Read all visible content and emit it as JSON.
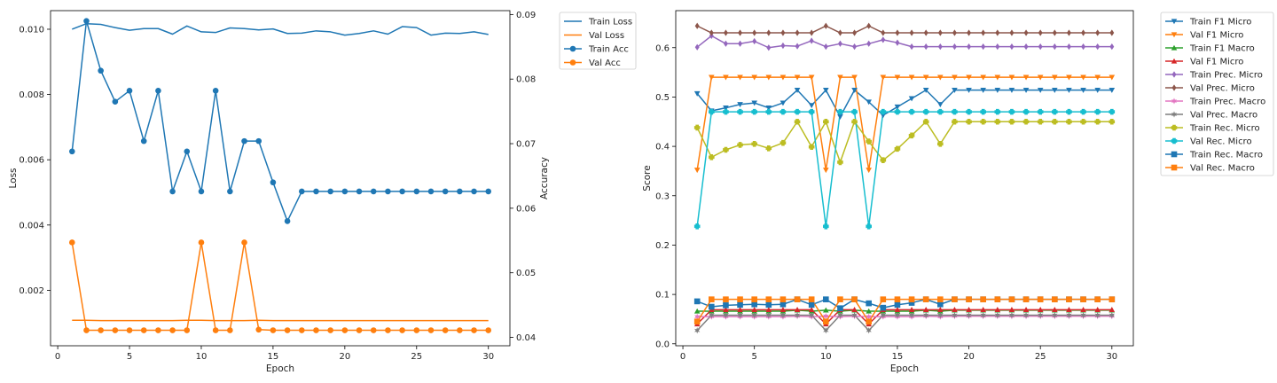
{
  "chart_data": [
    {
      "type": "line",
      "title": "",
      "xlabel": "Epoch",
      "ylabel": "Loss",
      "ylabel_right": "Accuracy",
      "xlim": [
        -0.5,
        31.5
      ],
      "ylim_left": [
        0.0003,
        0.01057
      ],
      "ylim_right": [
        0.0387,
        0.0906
      ],
      "xticks": [
        "0",
        "5",
        "10",
        "15",
        "20",
        "25",
        "30"
      ],
      "xtick_values": [
        0,
        5,
        10,
        15,
        20,
        25,
        30
      ],
      "yticks_left": [
        "0.002",
        "0.004",
        "0.006",
        "0.008",
        "0.010"
      ],
      "ytick_values_left": [
        0.002,
        0.004,
        0.006,
        0.008,
        0.01
      ],
      "yticks_right": [
        "0.04",
        "0.05",
        "0.06",
        "0.07",
        "0.08",
        "0.09"
      ],
      "ytick_values_right": [
        0.04,
        0.05,
        0.06,
        0.07,
        0.08,
        0.09
      ],
      "legend_position": "outside-right-top",
      "x": [
        1,
        2,
        3,
        4,
        5,
        6,
        7,
        8,
        9,
        10,
        11,
        12,
        13,
        14,
        15,
        16,
        17,
        18,
        19,
        20,
        21,
        22,
        23,
        24,
        25,
        26,
        27,
        28,
        29,
        30
      ],
      "series": [
        {
          "name": "Train Loss",
          "axis": "left",
          "color": "#1f77b4",
          "marker": "none",
          "values": [
            0.01,
            0.01017,
            0.01015,
            0.01005,
            0.00997,
            0.01002,
            0.01002,
            0.00985,
            0.0101,
            0.00992,
            0.0099,
            0.01004,
            0.01002,
            0.00998,
            0.01001,
            0.00987,
            0.00988,
            0.00995,
            0.00992,
            0.00982,
            0.00987,
            0.00995,
            0.00985,
            0.01008,
            0.01005,
            0.00982,
            0.00988,
            0.00987,
            0.00992,
            0.00984
          ]
        },
        {
          "name": "Val Loss",
          "axis": "left",
          "color": "#ff7f0e",
          "marker": "none",
          "values": [
            0.00108,
            0.00108,
            0.00107,
            0.00107,
            0.00107,
            0.00107,
            0.00107,
            0.00107,
            0.00108,
            0.00108,
            0.00107,
            0.00107,
            0.00107,
            0.00108,
            0.00107,
            0.00107,
            0.00107,
            0.00107,
            0.00107,
            0.00107,
            0.00107,
            0.00107,
            0.00107,
            0.00107,
            0.00107,
            0.00107,
            0.00107,
            0.00107,
            0.00107,
            0.00107
          ]
        },
        {
          "name": "Train Acc",
          "axis": "right",
          "color": "#1f77b4",
          "marker": "circle",
          "values": [
            0.0688,
            0.089,
            0.0813,
            0.0765,
            0.0782,
            0.0704,
            0.0782,
            0.0626,
            0.0688,
            0.0626,
            0.0782,
            0.0626,
            0.0704,
            0.0704,
            0.064,
            0.058,
            0.0626,
            0.0626,
            0.0626,
            0.0626,
            0.0626,
            0.0626,
            0.0626,
            0.0626,
            0.0626,
            0.0626,
            0.0626,
            0.0626,
            0.0626,
            0.0626
          ]
        },
        {
          "name": "Val Acc",
          "axis": "right",
          "color": "#ff7f0e",
          "marker": "circle",
          "values": [
            0.0547,
            0.0411,
            0.0411,
            0.0411,
            0.0411,
            0.0411,
            0.0411,
            0.0411,
            0.0411,
            0.0547,
            0.0411,
            0.0411,
            0.0547,
            0.0412,
            0.0411,
            0.0411,
            0.0411,
            0.0411,
            0.0411,
            0.0411,
            0.0411,
            0.0411,
            0.0411,
            0.0411,
            0.0411,
            0.0411,
            0.0411,
            0.0411,
            0.0411,
            0.0411
          ]
        }
      ]
    },
    {
      "type": "line",
      "title": "",
      "xlabel": "Epoch",
      "ylabel": "Score",
      "xlim": [
        -0.5,
        31.5
      ],
      "ylim": [
        -0.004,
        0.675
      ],
      "xticks": [
        "0",
        "5",
        "10",
        "15",
        "20",
        "25",
        "30"
      ],
      "xtick_values": [
        0,
        5,
        10,
        15,
        20,
        25,
        30
      ],
      "yticks": [
        "0.0",
        "0.1",
        "0.2",
        "0.3",
        "0.4",
        "0.5",
        "0.6"
      ],
      "ytick_values": [
        0.0,
        0.1,
        0.2,
        0.3,
        0.4,
        0.5,
        0.6
      ],
      "legend_position": "outside-right-top",
      "x": [
        1,
        2,
        3,
        4,
        5,
        6,
        7,
        8,
        9,
        10,
        11,
        12,
        13,
        14,
        15,
        16,
        17,
        18,
        19,
        20,
        21,
        22,
        23,
        24,
        25,
        26,
        27,
        28,
        29,
        30
      ],
      "series": [
        {
          "name": "Train F1 Micro",
          "color": "#1f77b4",
          "marker": "triangle-down",
          "values": [
            0.507,
            0.472,
            0.478,
            0.485,
            0.488,
            0.478,
            0.488,
            0.514,
            0.483,
            0.514,
            0.46,
            0.514,
            0.49,
            0.463,
            0.48,
            0.497,
            0.514,
            0.485,
            0.514,
            0.514,
            0.514,
            0.514,
            0.514,
            0.514,
            0.514,
            0.514,
            0.514,
            0.514,
            0.514,
            0.514
          ]
        },
        {
          "name": "Val F1 Micro",
          "color": "#ff7f0e",
          "marker": "triangle-down",
          "values": [
            0.352,
            0.54,
            0.54,
            0.54,
            0.54,
            0.54,
            0.54,
            0.54,
            0.54,
            0.352,
            0.54,
            0.54,
            0.352,
            0.54,
            0.54,
            0.54,
            0.54,
            0.54,
            0.54,
            0.54,
            0.54,
            0.54,
            0.54,
            0.54,
            0.54,
            0.54,
            0.54,
            0.54,
            0.54,
            0.54
          ]
        },
        {
          "name": "Train F1 Macro",
          "color": "#2ca02c",
          "marker": "triangle-up",
          "values": [
            0.066,
            0.066,
            0.066,
            0.066,
            0.066,
            0.066,
            0.066,
            0.068,
            0.066,
            0.068,
            0.066,
            0.068,
            0.066,
            0.066,
            0.066,
            0.066,
            0.068,
            0.066,
            0.068,
            0.068,
            0.068,
            0.068,
            0.068,
            0.068,
            0.068,
            0.068,
            0.068,
            0.068,
            0.068,
            0.068
          ]
        },
        {
          "name": "Val F1 Micro",
          "color": "#d62728",
          "marker": "triangle-up",
          "values": [
            0.04,
            0.069,
            0.069,
            0.069,
            0.069,
            0.069,
            0.069,
            0.069,
            0.069,
            0.04,
            0.069,
            0.069,
            0.04,
            0.069,
            0.069,
            0.069,
            0.069,
            0.069,
            0.069,
            0.069,
            0.069,
            0.069,
            0.069,
            0.069,
            0.069,
            0.069,
            0.069,
            0.069,
            0.069,
            0.069
          ]
        },
        {
          "name": "Train Prec. Micro",
          "color": "#9467bd",
          "marker": "diamond",
          "values": [
            0.601,
            0.624,
            0.608,
            0.608,
            0.613,
            0.6,
            0.604,
            0.603,
            0.614,
            0.602,
            0.608,
            0.602,
            0.608,
            0.616,
            0.61,
            0.602,
            0.602,
            0.602,
            0.602,
            0.602,
            0.602,
            0.602,
            0.602,
            0.602,
            0.602,
            0.602,
            0.602,
            0.602,
            0.602,
            0.602
          ]
        },
        {
          "name": "Val Prec. Micro",
          "color": "#8c564b",
          "marker": "diamond",
          "values": [
            0.644,
            0.63,
            0.63,
            0.63,
            0.63,
            0.63,
            0.63,
            0.63,
            0.63,
            0.644,
            0.63,
            0.63,
            0.644,
            0.63,
            0.63,
            0.63,
            0.63,
            0.63,
            0.63,
            0.63,
            0.63,
            0.63,
            0.63,
            0.63,
            0.63,
            0.63,
            0.63,
            0.63,
            0.63,
            0.63
          ]
        },
        {
          "name": "Train Prec. Macro",
          "color": "#e377c2",
          "marker": "star",
          "values": [
            0.055,
            0.055,
            0.055,
            0.055,
            0.055,
            0.055,
            0.055,
            0.056,
            0.055,
            0.056,
            0.055,
            0.056,
            0.055,
            0.055,
            0.055,
            0.055,
            0.056,
            0.055,
            0.056,
            0.056,
            0.056,
            0.056,
            0.056,
            0.056,
            0.056,
            0.056,
            0.056,
            0.056,
            0.056,
            0.056
          ]
        },
        {
          "name": "Val Prec. Macro",
          "color": "#7f7f7f",
          "marker": "star",
          "values": [
            0.027,
            0.058,
            0.058,
            0.058,
            0.058,
            0.058,
            0.058,
            0.058,
            0.058,
            0.027,
            0.058,
            0.058,
            0.027,
            0.058,
            0.058,
            0.058,
            0.058,
            0.058,
            0.058,
            0.058,
            0.058,
            0.058,
            0.058,
            0.058,
            0.058,
            0.058,
            0.058,
            0.058,
            0.058,
            0.058
          ]
        },
        {
          "name": "Train Rec. Micro",
          "color": "#bcbd22",
          "marker": "plus",
          "values": [
            0.438,
            0.378,
            0.393,
            0.403,
            0.405,
            0.396,
            0.407,
            0.45,
            0.399,
            0.45,
            0.368,
            0.45,
            0.41,
            0.372,
            0.395,
            0.422,
            0.45,
            0.405,
            0.45,
            0.45,
            0.45,
            0.45,
            0.45,
            0.45,
            0.45,
            0.45,
            0.45,
            0.45,
            0.45,
            0.45
          ]
        },
        {
          "name": "Val Rec. Micro",
          "color": "#17becf",
          "marker": "plus",
          "values": [
            0.238,
            0.47,
            0.47,
            0.47,
            0.47,
            0.47,
            0.47,
            0.47,
            0.47,
            0.238,
            0.47,
            0.47,
            0.238,
            0.47,
            0.47,
            0.47,
            0.47,
            0.47,
            0.47,
            0.47,
            0.47,
            0.47,
            0.47,
            0.47,
            0.47,
            0.47,
            0.47,
            0.47,
            0.47,
            0.47
          ]
        },
        {
          "name": "Train Rec. Macro",
          "color": "#1f77b4",
          "marker": "square",
          "values": [
            0.086,
            0.075,
            0.078,
            0.079,
            0.08,
            0.079,
            0.08,
            0.09,
            0.079,
            0.09,
            0.072,
            0.09,
            0.082,
            0.073,
            0.079,
            0.083,
            0.09,
            0.08,
            0.09,
            0.09,
            0.09,
            0.09,
            0.09,
            0.09,
            0.09,
            0.09,
            0.09,
            0.09,
            0.09,
            0.09
          ]
        },
        {
          "name": "Val Rec. Macro",
          "color": "#ff7f0e",
          "marker": "square",
          "values": [
            0.045,
            0.09,
            0.09,
            0.09,
            0.09,
            0.09,
            0.09,
            0.09,
            0.09,
            0.045,
            0.09,
            0.09,
            0.045,
            0.09,
            0.09,
            0.09,
            0.09,
            0.09,
            0.09,
            0.09,
            0.09,
            0.09,
            0.09,
            0.09,
            0.09,
            0.09,
            0.09,
            0.09,
            0.09,
            0.09
          ]
        }
      ]
    }
  ]
}
